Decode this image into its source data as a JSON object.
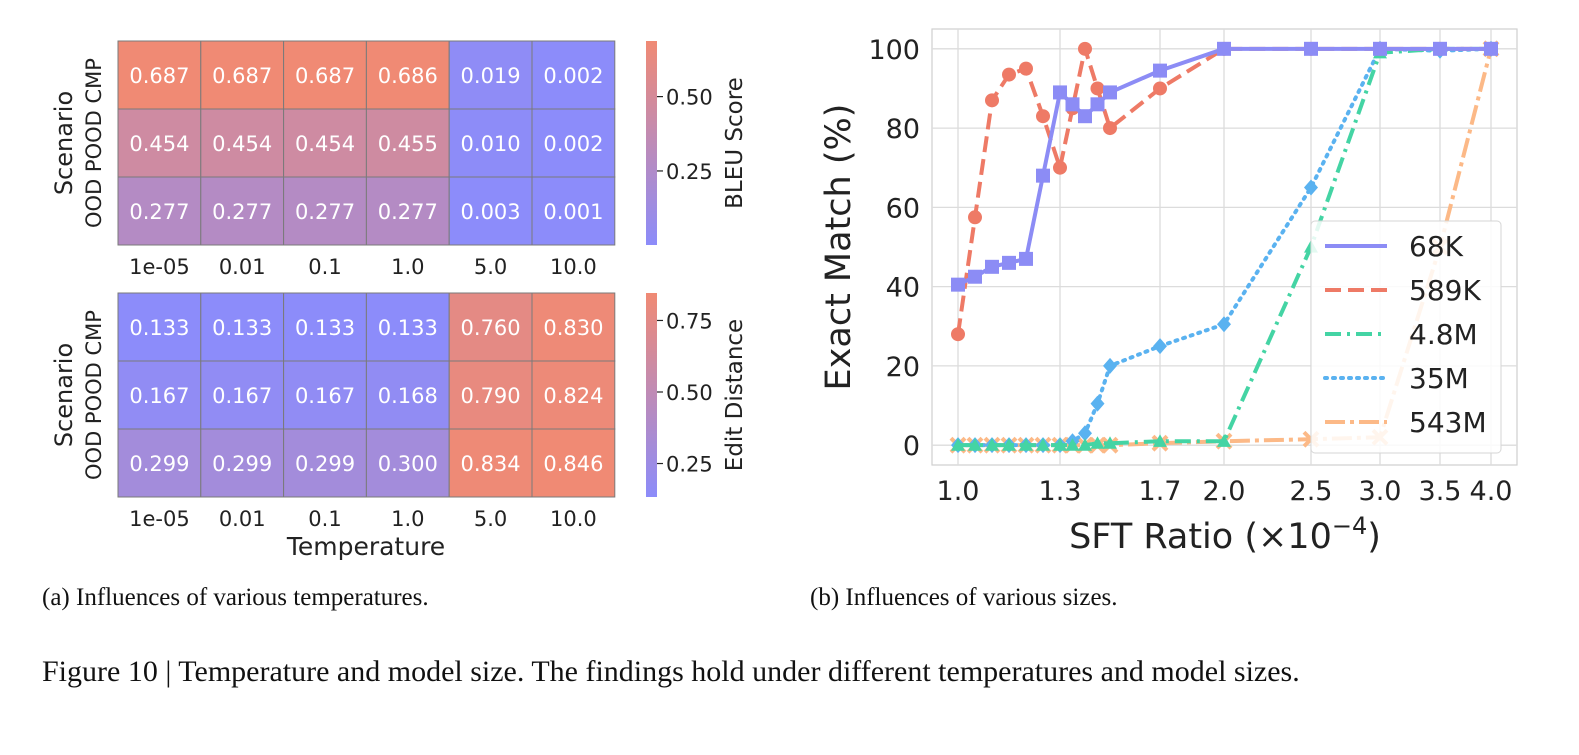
{
  "heatmaps": {
    "xlabel": "Temperature",
    "ylabel": "Scenario",
    "y_categories": [
      "OOD",
      "POOD",
      "CMP"
    ],
    "x_categories": [
      "1e-05",
      "0.01",
      "0.1",
      "1.0",
      "5.0",
      "10.0"
    ],
    "colors": {
      "low": "#8c8cfa",
      "high": "#f08a74"
    },
    "top": {
      "colorbar_label": "BLEU Score",
      "colorbar_ticks": [
        "0.25",
        "0.50"
      ],
      "colorbar_tick_values": [
        0.25,
        0.5
      ],
      "range": [
        0.001,
        0.687
      ],
      "values": [
        [
          "0.687",
          "0.687",
          "0.687",
          "0.686",
          "0.019",
          "0.002"
        ],
        [
          "0.454",
          "0.454",
          "0.454",
          "0.455",
          "0.010",
          "0.002"
        ],
        [
          "0.277",
          "0.277",
          "0.277",
          "0.277",
          "0.003",
          "0.001"
        ]
      ]
    },
    "bottom": {
      "colorbar_label": "Edit Distance",
      "colorbar_ticks": [
        "0.25",
        "0.50",
        "0.75"
      ],
      "colorbar_tick_values": [
        0.25,
        0.5,
        0.75
      ],
      "range": [
        0.133,
        0.846
      ],
      "values": [
        [
          "0.133",
          "0.133",
          "0.133",
          "0.133",
          "0.760",
          "0.830"
        ],
        [
          "0.167",
          "0.167",
          "0.167",
          "0.168",
          "0.790",
          "0.824"
        ],
        [
          "0.299",
          "0.299",
          "0.299",
          "0.300",
          "0.834",
          "0.846"
        ]
      ]
    }
  },
  "chart_data": {
    "type": "line",
    "title": "",
    "ylabel": "Exact Match (%)",
    "xlabel_prefix": "SFT Ratio (",
    "xlabel_times": "×",
    "xlabel_base": "10",
    "xlabel_exp": "−4",
    "xlabel_suffix": ")",
    "ylim": [
      -5,
      105
    ],
    "y_ticks": [
      0,
      20,
      40,
      60,
      80,
      100
    ],
    "y_tick_labels": [
      "0",
      "20",
      "40",
      "60",
      "80",
      "100"
    ],
    "x_ticks": [
      1.0,
      1.3,
      1.7,
      2.0,
      2.5,
      3.0,
      3.5,
      4.0
    ],
    "x_tick_labels": [
      "1.0",
      "1.3",
      "1.7",
      "2.0",
      "2.5",
      "3.0",
      "3.5",
      "4.0"
    ],
    "legend_position": "center-right",
    "series": [
      {
        "name": "68K",
        "color": "#8c8cf5",
        "dash": "solid",
        "marker": "square",
        "x": [
          1.0,
          1.05,
          1.1,
          1.15,
          1.2,
          1.25,
          1.3,
          1.35,
          1.4,
          1.45,
          1.5,
          1.7,
          2.0,
          2.5,
          3.0,
          3.5,
          4.0
        ],
        "y": [
          40.5,
          42.5,
          45,
          46,
          47,
          68,
          89,
          86,
          83,
          86,
          89,
          94.5,
          100,
          100,
          100,
          100,
          100
        ]
      },
      {
        "name": "589K",
        "color": "#ee7a66",
        "dash": "dashed",
        "marker": "circle",
        "x": [
          1.0,
          1.05,
          1.1,
          1.15,
          1.2,
          1.25,
          1.3,
          1.35,
          1.4,
          1.45,
          1.5,
          1.7,
          2.0,
          2.5,
          3.0,
          3.5,
          4.0
        ],
        "y": [
          28,
          57.5,
          87,
          93.5,
          95,
          83,
          70,
          85,
          100,
          90,
          80,
          90,
          100,
          100,
          100,
          100,
          100
        ]
      },
      {
        "name": "4.8M",
        "color": "#44d4a4",
        "dash": "dashdot",
        "marker": "triangle",
        "x": [
          1.0,
          1.05,
          1.1,
          1.15,
          1.2,
          1.25,
          1.3,
          1.35,
          1.4,
          1.45,
          1.5,
          1.7,
          2.0,
          2.5,
          3.0,
          3.5,
          4.0
        ],
        "y": [
          0,
          0,
          0,
          0,
          0,
          0,
          0,
          0,
          0,
          0.5,
          0.5,
          1,
          1,
          50,
          99,
          100,
          100
        ]
      },
      {
        "name": "35M",
        "color": "#5ab2f0",
        "dash": "dotted",
        "marker": "diamond",
        "x": [
          1.0,
          1.05,
          1.1,
          1.15,
          1.2,
          1.25,
          1.3,
          1.35,
          1.4,
          1.45,
          1.5,
          1.7,
          2.0,
          2.5,
          3.0,
          3.5,
          4.0
        ],
        "y": [
          0,
          0,
          0,
          0,
          0,
          0,
          0,
          1,
          3,
          10.5,
          20,
          25,
          30.5,
          65,
          100,
          99.5,
          100
        ]
      },
      {
        "name": "543M",
        "color": "#fcb987",
        "dash": "dashdotlong",
        "marker": "cross",
        "x": [
          1.0,
          1.05,
          1.1,
          1.15,
          1.2,
          1.25,
          1.3,
          1.35,
          1.4,
          1.45,
          1.5,
          1.7,
          2.0,
          2.5,
          3.0,
          3.5,
          4.0
        ],
        "y": [
          0,
          0,
          0,
          0,
          0,
          0,
          0,
          0,
          0,
          0,
          0,
          0.5,
          1,
          1.5,
          2,
          50,
          100
        ]
      }
    ]
  },
  "captions": {
    "a": "(a) Influences of various temperatures.",
    "b": "(b) Influences of various sizes.",
    "figure": "Figure 10 | Temperature and model size. The findings hold under different temperatures and model sizes."
  }
}
